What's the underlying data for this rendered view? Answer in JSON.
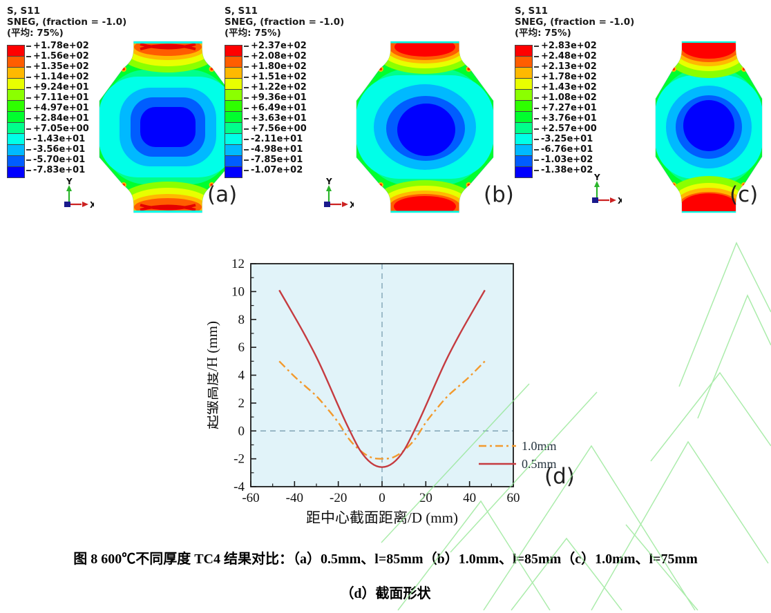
{
  "figure": {
    "caption_line1": "图 8  600℃不同厚度 TC4 结果对比：（a）0.5mm、l=85mm（b）1.0mm、l=85mm（c）1.0mm、l=75mm",
    "caption_line2": "（d）截面形状"
  },
  "abaqus_palette": [
    "#FF0000",
    "#FF5D00",
    "#FFB900",
    "#E8FF00",
    "#8BFF00",
    "#2EFF00",
    "#00FF2E",
    "#00FF8B",
    "#00FFE8",
    "#00B9FF",
    "#005DFF",
    "#0000FF"
  ],
  "triad": {
    "x_label": "X",
    "y_label": "Y"
  },
  "panels": [
    {
      "label": "(a)",
      "header": [
        "S, S11",
        "SNEG, (fraction = -1.0)",
        "(平均: 75%)"
      ],
      "values": [
        "+1.78e+02",
        "+1.56e+02",
        "+1.35e+02",
        "+1.14e+02",
        "+9.24e+01",
        "+7.11e+01",
        "+4.97e+01",
        "+2.84e+01",
        "+7.05e+00",
        "-1.43e+01",
        "-3.56e+01",
        "-5.70e+01",
        "-7.83e+01"
      ]
    },
    {
      "label": "(b)",
      "header": [
        "S, S11",
        "SNEG, (fraction = -1.0)",
        "(平均: 75%)"
      ],
      "values": [
        "+2.37e+02",
        "+2.08e+02",
        "+1.80e+02",
        "+1.51e+02",
        "+1.22e+02",
        "+9.36e+01",
        "+6.49e+01",
        "+3.63e+01",
        "+7.56e+00",
        "-2.11e+01",
        "-4.98e+01",
        "-7.85e+01",
        "-1.07e+02"
      ]
    },
    {
      "label": "(c)",
      "header": [
        "S, S11",
        "SNEG, (fraction = -1.0)",
        "(平均: 75%)"
      ],
      "values": [
        "+2.83e+02",
        "+2.48e+02",
        "+2.13e+02",
        "+1.78e+02",
        "+1.43e+02",
        "+1.08e+02",
        "+7.27e+01",
        "+3.76e+01",
        "+2.57e+00",
        "-3.25e+01",
        "-6.76e+01",
        "-1.03e+02",
        "-1.38e+02"
      ]
    }
  ],
  "chart": {
    "panel_label": "(d)"
  },
  "chart_data": {
    "type": "line",
    "title": "",
    "xlabel": "距中心截面距离/D (mm)",
    "ylabel": "起皱高度/H (mm)",
    "xlim": [
      -60,
      60
    ],
    "ylim": [
      -4,
      12
    ],
    "xticks": [
      -60,
      -40,
      -20,
      0,
      20,
      40,
      60
    ],
    "yticks": [
      -4,
      -2,
      0,
      2,
      4,
      6,
      8,
      10,
      12
    ],
    "grid": false,
    "background": "#E1F3F9",
    "reference_lines": {
      "vertical_at_x": 0,
      "horizontal_at_y": 0,
      "color": "#7FA3B5",
      "style": "dashed"
    },
    "legend_position": "lower right",
    "x": [
      -47,
      -40,
      -35,
      -30,
      -25,
      -20,
      -15,
      -10,
      -5,
      0,
      5,
      10,
      15,
      20,
      25,
      30,
      35,
      40,
      47
    ],
    "series": [
      {
        "name": "1.0mm",
        "color": "#F29A2E",
        "style": "dash-dot",
        "y": [
          5.0,
          3.9,
          3.2,
          2.5,
          1.6,
          0.6,
          -0.6,
          -1.4,
          -1.9,
          -2.0,
          -1.9,
          -1.4,
          -0.6,
          0.6,
          1.6,
          2.5,
          3.2,
          3.9,
          5.0
        ]
      },
      {
        "name": "0.5mm",
        "color": "#C53B40",
        "style": "solid",
        "y": [
          10.1,
          8.2,
          6.8,
          5.3,
          3.6,
          1.8,
          0.1,
          -1.4,
          -2.3,
          -2.6,
          -2.3,
          -1.4,
          0.1,
          1.8,
          3.6,
          5.3,
          6.8,
          8.2,
          10.1
        ]
      }
    ]
  }
}
